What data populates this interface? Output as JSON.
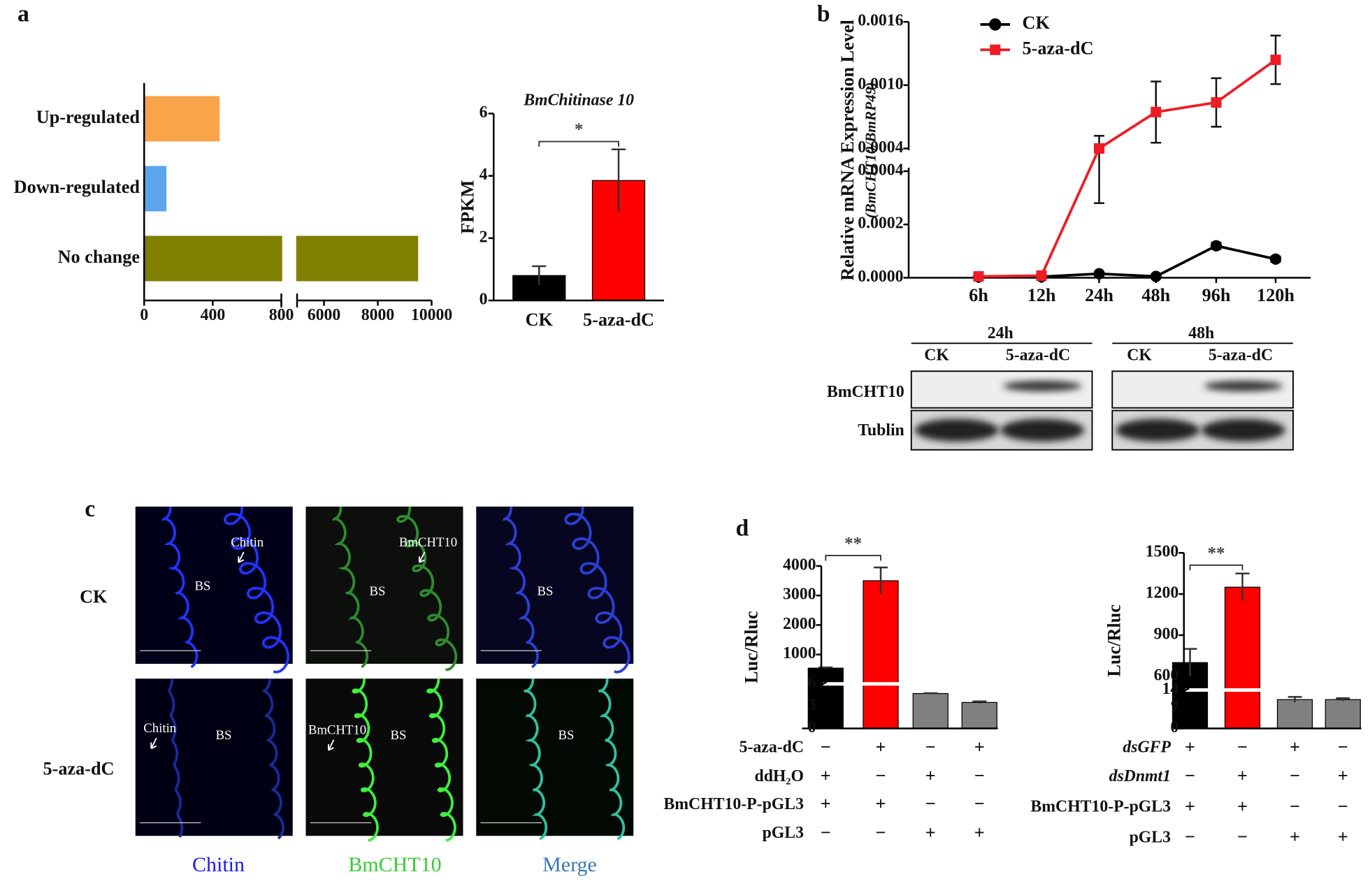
{
  "panel_labels": [
    "a",
    "b",
    "c",
    "d"
  ],
  "chart_data": [
    {
      "type": "bar",
      "orientation": "horizontal",
      "categories": [
        "Up-regulated",
        "Down-regulated",
        "No change"
      ],
      "values": [
        440,
        130,
        9500
      ],
      "colors": [
        "#f9a44a",
        "#5aa5ec",
        "#808000"
      ],
      "xlim": [
        0,
        10000
      ],
      "xbreak": [
        800,
        5000
      ],
      "xticks": [
        0,
        400,
        800,
        6000,
        8000,
        10000
      ]
    },
    {
      "type": "bar",
      "orientation": "vertical",
      "title": "BmChitinase 10",
      "ylabel": "FPKM",
      "categories": [
        "CK",
        "5-aza-dC"
      ],
      "values": [
        0.8,
        3.85
      ],
      "errors": [
        0.3,
        1.0
      ],
      "colors": [
        "#000000",
        "#ff0000"
      ],
      "ylim": [
        0,
        6
      ],
      "yticks": [
        0,
        2,
        4,
        6
      ],
      "significance": "*"
    },
    {
      "type": "line",
      "ylabel": "Relative mRNA Expression Level",
      "ylabel2": "(BmCHT10/BmRP49)",
      "categories": [
        "6h",
        "12h",
        "24h",
        "48h",
        "96h",
        "120h"
      ],
      "series": [
        {
          "name": "CK",
          "color": "#000000",
          "marker": "circle",
          "values": [
            3e-06,
            4e-06,
            1.5e-05,
            5e-06,
            0.00012,
            7e-05
          ],
          "errors": [
            3e-06,
            3e-06,
            6e-06,
            3e-06,
            1.2e-05,
            1e-05
          ]
        },
        {
          "name": "5-aza-dC",
          "color": "#ee1c25",
          "marker": "square",
          "values": [
            5e-06,
            8e-06,
            0.0004,
            0.000745,
            0.000836,
            0.00124
          ],
          "errors": [
            3e-06,
            5e-06,
            0.00012,
            0.00029,
            0.00023,
            0.00023
          ]
        }
      ],
      "ylim": [
        0,
        0.0016
      ],
      "ybreak": [
        0.0004,
        0.0004
      ],
      "yticks": [
        {
          "value": 0,
          "label": "0.0000"
        },
        0.0002,
        0.0004,
        0.0004,
        {
          "value": 0.001,
          "label": "0.0010"
        },
        0.0016
      ]
    },
    {
      "type": "bar",
      "orientation": "vertical",
      "ylabel": "Luc/Rluc",
      "values": [
        540,
        3500,
        4.7,
        3.5
      ],
      "errors": [
        25,
        450,
        0.05,
        0.15
      ],
      "colors": [
        "#000000",
        "#ff0000",
        "#808080",
        "#808080"
      ],
      "ylim": [
        0,
        4000
      ],
      "ybreak": [
        6,
        6
      ],
      "yticks": [
        0,
        3,
        6,
        1000,
        2000,
        3000,
        4000
      ],
      "significance": "**",
      "treatments": [
        {
          "label": "5-aza-dC",
          "marks": [
            "−",
            "+",
            "−",
            "+"
          ]
        },
        {
          "label": "ddH₂O",
          "marks": [
            "+",
            "−",
            "+",
            "−"
          ]
        },
        {
          "label": "BmCHT10-P-pGL3",
          "marks": [
            "+",
            "+",
            "−",
            "−"
          ]
        },
        {
          "label": "pGL3",
          "marks": [
            "−",
            "−",
            "+",
            "+"
          ]
        }
      ]
    },
    {
      "type": "bar",
      "orientation": "vertical",
      "ylabel": "Luc/Rluc",
      "values": [
        700,
        1250,
        10.5,
        10.5
      ],
      "errors": [
        100,
        100,
        1,
        0.5
      ],
      "colors": [
        "#000000",
        "#ff0000",
        "#808080",
        "#808080"
      ],
      "ylim": [
        0,
        1500
      ],
      "ybreak": [
        14,
        500
      ],
      "yticks": [
        0,
        7,
        14,
        600,
        900,
        1200,
        1500
      ],
      "significance": "**",
      "treatments": [
        {
          "label": "dsGFP",
          "italic": true,
          "marks": [
            "+",
            "−",
            "+",
            "−"
          ]
        },
        {
          "label": "dsDnmt1",
          "italic": true,
          "marks": [
            "−",
            "+",
            "−",
            "+"
          ]
        },
        {
          "label": "BmCHT10-P-pGL3",
          "marks": [
            "+",
            "+",
            "−",
            "−"
          ]
        },
        {
          "label": "pGL3",
          "marks": [
            "−",
            "−",
            "+",
            "+"
          ]
        }
      ]
    }
  ],
  "western_blot": {
    "times": [
      "24h",
      "48h"
    ],
    "lanes": [
      "CK",
      "5-aza-dC",
      "CK",
      "5-aza-dC"
    ],
    "proteins": [
      "BmCHT10",
      "Tublin"
    ]
  },
  "microscopy": {
    "rows": [
      "CK",
      "5-aza-dC"
    ],
    "columns": [
      "Chitin",
      "BmCHT10",
      "Merge"
    ],
    "annotations": [
      [
        "Chitin",
        "BS"
      ],
      [
        "BmCHT10",
        "BS"
      ],
      [
        "BS"
      ],
      [
        "Chitin",
        "BS"
      ],
      [
        "BmCHT10",
        "BS"
      ],
      [
        "BS"
      ]
    ]
  }
}
